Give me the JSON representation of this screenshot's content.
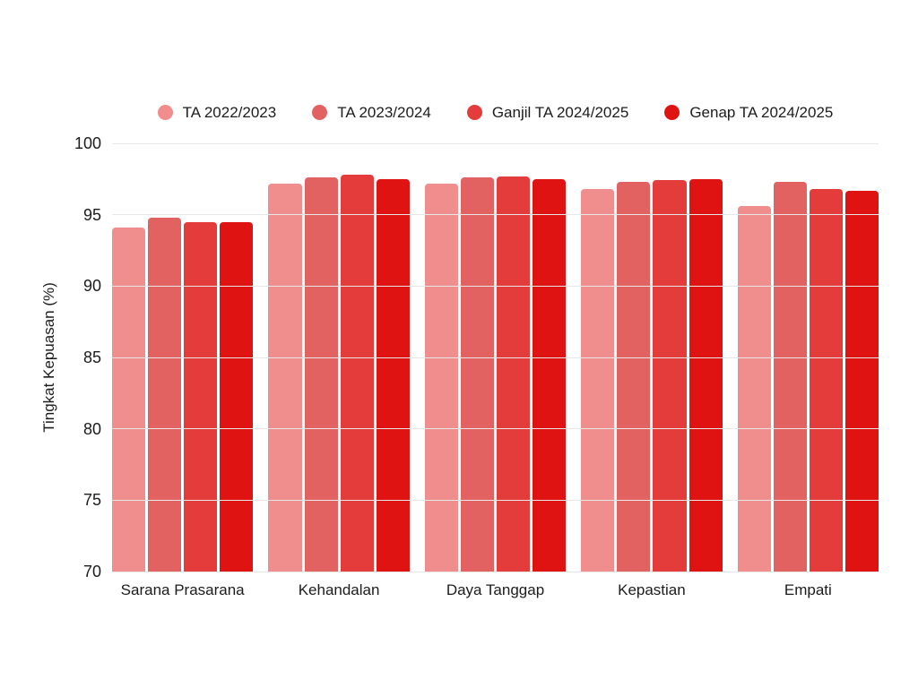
{
  "chart_data": {
    "type": "bar",
    "title": "",
    "categories": [
      "Sarana Prasarana",
      "Kehandalan",
      "Daya Tanggap",
      "Kepastian",
      "Empati"
    ],
    "series": [
      {
        "name": "TA 2022/2023",
        "color": "#F08D8D",
        "values": [
          94.1,
          97.2,
          97.2,
          96.8,
          95.6
        ]
      },
      {
        "name": "TA 2023/2024",
        "color": "#E26262",
        "values": [
          94.8,
          97.6,
          97.6,
          97.3,
          97.3
        ]
      },
      {
        "name": "Ganjil TA 2024/2025",
        "color": "#E43B3B",
        "values": [
          94.5,
          97.8,
          97.7,
          97.4,
          96.8
        ]
      },
      {
        "name": "Genap TA 2024/2025",
        "color": "#E01313",
        "values": [
          94.5,
          97.5,
          97.5,
          97.5,
          96.7
        ]
      }
    ],
    "xlabel": "",
    "ylabel": "Tingkat Kepuasan (%)",
    "ylim": [
      70,
      100
    ],
    "yticks": [
      100,
      95,
      90,
      85,
      80,
      75,
      70
    ],
    "grid": true,
    "legend_position": "top",
    "gridline_color": "#e7e7e7",
    "background_color": "#ffffff",
    "text_color": "#1c1c1c"
  }
}
